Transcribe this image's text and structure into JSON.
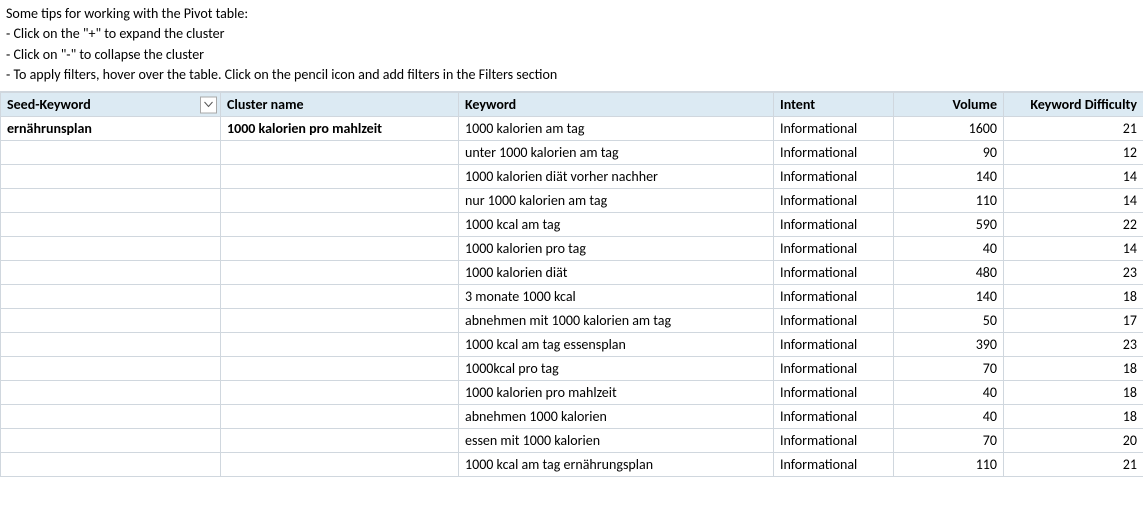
{
  "tips": {
    "line1": "Some tips for working with the Pivot table:",
    "line2": "- Click on the \"+\" to expand the cluster",
    "line3": "- Click on \"-\" to collapse the cluster",
    "line4": "- To apply filters, hover over the table. Click on the pencil icon and add filters in the Filters section"
  },
  "columns": {
    "seed": "Seed-Keyword",
    "cluster": "Cluster name",
    "keyword": "Keyword",
    "intent": "Intent",
    "volume": "Volume",
    "difficulty": "Keyword Difficulty"
  },
  "seed_value": "ernährunsplan",
  "cluster_value": "1000 kalorien pro mahlzeit",
  "rows": [
    {
      "keyword": "1000 kalorien am tag",
      "intent": "Informational",
      "volume": "1600",
      "difficulty": "21"
    },
    {
      "keyword": "unter 1000 kalorien am tag",
      "intent": "Informational",
      "volume": "90",
      "difficulty": "12"
    },
    {
      "keyword": "1000 kalorien diät vorher nachher",
      "intent": "Informational",
      "volume": "140",
      "difficulty": "14"
    },
    {
      "keyword": "nur 1000 kalorien am tag",
      "intent": "Informational",
      "volume": "110",
      "difficulty": "14"
    },
    {
      "keyword": "1000 kcal am tag",
      "intent": "Informational",
      "volume": "590",
      "difficulty": "22"
    },
    {
      "keyword": "1000 kalorien pro tag",
      "intent": "Informational",
      "volume": "40",
      "difficulty": "14"
    },
    {
      "keyword": "1000 kalorien diät",
      "intent": "Informational",
      "volume": "480",
      "difficulty": "23"
    },
    {
      "keyword": "3 monate 1000 kcal",
      "intent": "Informational",
      "volume": "140",
      "difficulty": "18"
    },
    {
      "keyword": "abnehmen mit 1000 kalorien am tag",
      "intent": "Informational",
      "volume": "50",
      "difficulty": "17"
    },
    {
      "keyword": "1000 kcal am tag essensplan",
      "intent": "Informational",
      "volume": "390",
      "difficulty": "23"
    },
    {
      "keyword": "1000kcal pro tag",
      "intent": "Informational",
      "volume": "70",
      "difficulty": "18"
    },
    {
      "keyword": "1000 kalorien pro mahlzeit",
      "intent": "Informational",
      "volume": "40",
      "difficulty": "18"
    },
    {
      "keyword": "abnehmen 1000 kalorien",
      "intent": "Informational",
      "volume": "40",
      "difficulty": "18"
    },
    {
      "keyword": "essen mit 1000 kalorien",
      "intent": "Informational",
      "volume": "70",
      "difficulty": "20"
    },
    {
      "keyword": "1000 kcal am tag ernährungsplan",
      "intent": "Informational",
      "volume": "110",
      "difficulty": "21"
    }
  ],
  "colors": {
    "header_bg": "#dceaf3",
    "border": "#d0d7de",
    "text": "#000000",
    "bg": "#ffffff"
  }
}
